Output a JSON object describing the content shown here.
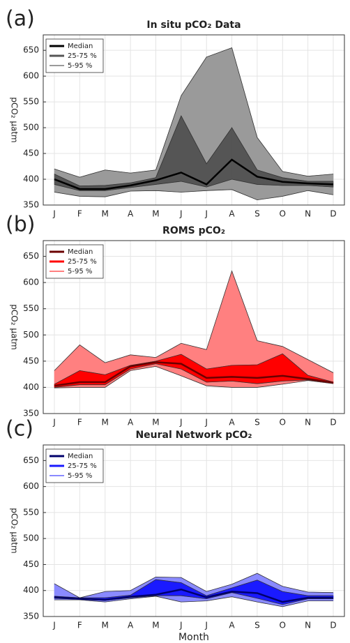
{
  "chart_data": [
    {
      "type": "band",
      "panel_label": "(a)",
      "title": "In situ pCO₂ Data",
      "ylabel": "pCO₂ μatm",
      "categories": [
        "J",
        "F",
        "M",
        "A",
        "M",
        "J",
        "J",
        "A",
        "S",
        "O",
        "N",
        "D"
      ],
      "ylim": [
        350,
        680
      ],
      "yticks": [
        350,
        400,
        450,
        500,
        550,
        600,
        650
      ],
      "grid": true,
      "legend": "upper left",
      "series": [
        {
          "name": "Median",
          "color": "#000000",
          "values": [
            400,
            381,
            381,
            388,
            398,
            413,
            390,
            438,
            405,
            395,
            392,
            390
          ]
        },
        {
          "name": "25-75 %",
          "color": "#555555",
          "lower": [
            390,
            378,
            378,
            384,
            390,
            396,
            385,
            400,
            390,
            388,
            388,
            385
          ],
          "upper": [
            410,
            387,
            388,
            393,
            403,
            523,
            430,
            500,
            418,
            403,
            396,
            396
          ]
        },
        {
          "name": "5-95 %",
          "color": "#9a9a9a",
          "lower": [
            375,
            367,
            366,
            377,
            378,
            375,
            378,
            380,
            360,
            367,
            378,
            370
          ],
          "upper": [
            420,
            404,
            418,
            412,
            418,
            562,
            637,
            655,
            481,
            415,
            406,
            410
          ]
        }
      ]
    },
    {
      "type": "band",
      "panel_label": "(b)",
      "title": "ROMS pCO₂",
      "ylabel": "pCO₂ μatm",
      "categories": [
        "J",
        "F",
        "M",
        "A",
        "M",
        "J",
        "J",
        "A",
        "S",
        "O",
        "N",
        "D"
      ],
      "ylim": [
        350,
        680
      ],
      "yticks": [
        350,
        400,
        450,
        500,
        550,
        600,
        650
      ],
      "grid": true,
      "legend": "upper left",
      "series": [
        {
          "name": "Median",
          "color": "#6b0000",
          "values": [
            403,
            410,
            410,
            440,
            448,
            445,
            418,
            420,
            418,
            422,
            416,
            409
          ]
        },
        {
          "name": "25-75 %",
          "color": "#ff0000",
          "lower": [
            400,
            405,
            405,
            435,
            445,
            435,
            410,
            412,
            407,
            412,
            414,
            408
          ],
          "upper": [
            406,
            432,
            424,
            442,
            450,
            463,
            435,
            442,
            443,
            464,
            423,
            410
          ]
        },
        {
          "name": "5-95 %",
          "color": "#ff8080",
          "lower": [
            399,
            400,
            400,
            432,
            440,
            422,
            403,
            400,
            400,
            406,
            413,
            407
          ],
          "upper": [
            432,
            481,
            447,
            462,
            457,
            484,
            472,
            622,
            489,
            478,
            453,
            428
          ]
        }
      ]
    },
    {
      "type": "band",
      "panel_label": "(c)",
      "title": "Neural Network pCO₂",
      "ylabel": "pCO₂ μatm",
      "xlabel": "Month",
      "categories": [
        "J",
        "F",
        "M",
        "A",
        "M",
        "J",
        "J",
        "A",
        "S",
        "O",
        "N",
        "D"
      ],
      "ylim": [
        350,
        680
      ],
      "yticks": [
        350,
        400,
        450,
        500,
        550,
        600,
        650
      ],
      "grid": true,
      "legend": "upper left",
      "series": [
        {
          "name": "Median",
          "color": "#00006b",
          "values": [
            387,
            384,
            382,
            388,
            392,
            402,
            387,
            398,
            395,
            378,
            386,
            386
          ]
        },
        {
          "name": "25-75 %",
          "color": "#1a1aff",
          "lower": [
            385,
            383,
            381,
            386,
            390,
            390,
            384,
            396,
            385,
            373,
            384,
            384
          ],
          "upper": [
            389,
            386,
            386,
            391,
            421,
            415,
            390,
            405,
            420,
            398,
            390,
            390
          ]
        },
        {
          "name": "5-95 %",
          "color": "#8a8aff",
          "lower": [
            382,
            382,
            378,
            384,
            389,
            378,
            380,
            388,
            378,
            369,
            380,
            380
          ],
          "upper": [
            413,
            386,
            398,
            400,
            426,
            425,
            398,
            412,
            433,
            408,
            397,
            396
          ]
        }
      ]
    }
  ]
}
